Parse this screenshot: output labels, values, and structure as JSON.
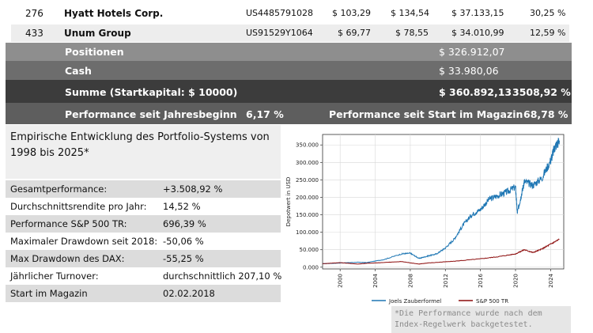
{
  "top_rows": [
    {
      "num": "276",
      "company": "Hyatt Hotels Corp.",
      "isin": "US4485791028",
      "buy": "$ 103,29",
      "current": "$ 134,54",
      "value": "$ 37.133,15",
      "pct": "30,25 %"
    },
    {
      "num": "433",
      "company": "Unum Group",
      "isin": "US91529Y1064",
      "buy": "$ 69,77",
      "current": "$ 78,55",
      "value": "$ 34.010,99",
      "pct": "12,59 %"
    }
  ],
  "summary": {
    "positions_label": "Positionen",
    "positions_value": "$ 326.912,07",
    "cash_label": "Cash",
    "cash_value": "$ 33.980,06",
    "sum_label": "Summe (Startkapital: $ 10000)",
    "sum_value": "$ 360.892,13",
    "sum_pct": "3508,92 %",
    "perf_year_label": "Performance seit Jahresbeginn",
    "perf_year_value": "6,17 %",
    "perf_start_label": "Performance seit Start im Magazin",
    "perf_start_value": "68,78 %"
  },
  "panel": {
    "title": "Empirische Entwicklung des Portfolio-Systems von 1998 bis 2025*",
    "stats": [
      {
        "label": "Gesamtperformance:",
        "value": "+3.508,92 %"
      },
      {
        "label": "Durchschnittsrendite pro Jahr:",
        "value": "14,52 %"
      },
      {
        "label": "Performance S&P 500 TR:",
        "value": "696,39 %"
      },
      {
        "label": "Maximaler Drawdown seit 2018:",
        "value": "-50,06 %"
      },
      {
        "label": "Max Drawdown des DAX:",
        "value": "-55,25 %"
      },
      {
        "label": "Jährlicher Turnover:",
        "value": "durchschnittlich 207,10 %"
      },
      {
        "label": "Start im Magazin",
        "value": "02.02.2018"
      }
    ]
  },
  "note": "*Die Performance wurde nach dem Index-Regelwerk backgetestet.",
  "chart_data": {
    "type": "line",
    "ylabel": "Depotwert in USD",
    "xlabel": "",
    "xlim": [
      1998,
      2025.5
    ],
    "ylim": [
      -5000,
      380000
    ],
    "x_ticks": [
      "2000",
      "2004",
      "2008",
      "2012",
      "2016",
      "2020",
      "2024"
    ],
    "y_ticks": [
      "0.000",
      "50.000",
      "100.000",
      "150.000",
      "200.000",
      "250.000",
      "300.000",
      "350.000"
    ],
    "grid": true,
    "legend": "bottom",
    "series": [
      {
        "name": "Joels Zauberformel",
        "color": "#1f77b4",
        "x": [
          1998,
          2000,
          2002,
          2003,
          2005,
          2007,
          2008,
          2009,
          2010,
          2011,
          2012,
          2013,
          2014,
          2015,
          2016,
          2017,
          2018,
          2019,
          2020,
          2020.2,
          2020.6,
          2021,
          2022,
          2023,
          2024,
          2024.5,
          2025
        ],
        "y": [
          10000,
          12000,
          14000,
          13000,
          22000,
          38000,
          40000,
          25000,
          32000,
          38000,
          55000,
          80000,
          120000,
          150000,
          165000,
          195000,
          205000,
          215000,
          230000,
          155000,
          200000,
          245000,
          235000,
          255000,
          305000,
          345000,
          362000
        ]
      },
      {
        "name": "S&P 500 TR",
        "color": "#8b0a0a",
        "x": [
          1998,
          2000,
          2002,
          2003,
          2007,
          2009,
          2010,
          2013,
          2016,
          2018,
          2020,
          2021,
          2022,
          2023,
          2024,
          2025
        ],
        "y": [
          10000,
          13000,
          9000,
          11000,
          16000,
          9000,
          12000,
          17000,
          24000,
          30000,
          38000,
          50000,
          42000,
          52000,
          66000,
          80000
        ]
      }
    ]
  }
}
